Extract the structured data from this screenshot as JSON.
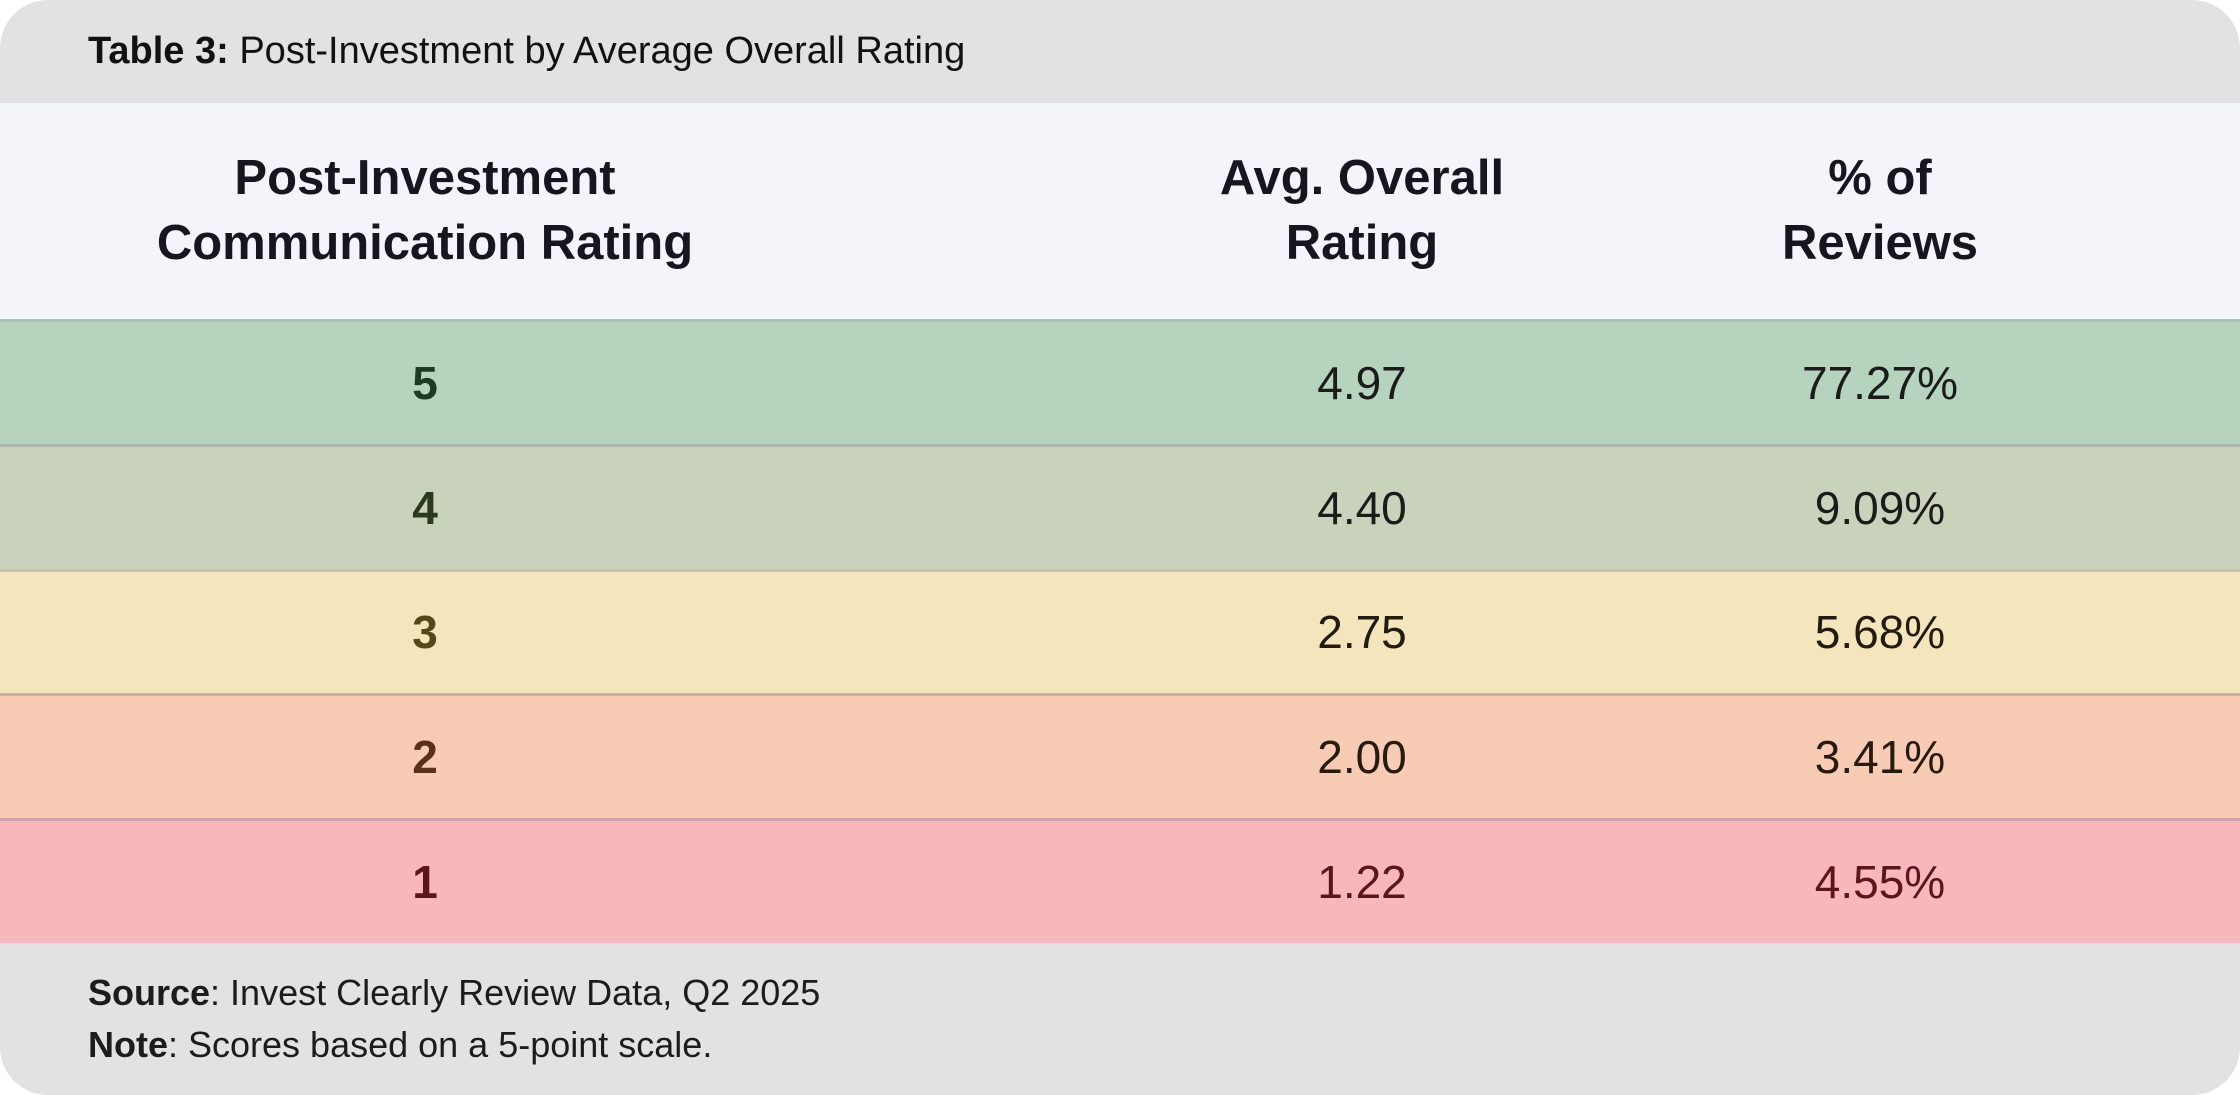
{
  "title": {
    "prefix": "Table 3:",
    "text": " Post-Investment by Average Overall Rating"
  },
  "table": {
    "columns": [
      {
        "label": "Post-Investment\nCommunication Rating"
      },
      {
        "label": "Avg. Overall\nRating"
      },
      {
        "label": "% of\nReviews"
      }
    ],
    "rows": [
      {
        "rating": "5",
        "avg_overall_rating": "4.97",
        "pct_of_reviews": "77.27%",
        "bg_color": "#b5d3bd",
        "rating_color": "#1d3a22",
        "value_color": "#1b1b1b"
      },
      {
        "rating": "4",
        "avg_overall_rating": "4.40",
        "pct_of_reviews": "9.09%",
        "bg_color": "#c9d3bc",
        "rating_color": "#2c3a1c",
        "value_color": "#1b1b1b"
      },
      {
        "rating": "3",
        "avg_overall_rating": "2.75",
        "pct_of_reviews": "5.68%",
        "bg_color": "#f5e5bd",
        "rating_color": "#55471a",
        "value_color": "#221c10"
      },
      {
        "rating": "2",
        "avg_overall_rating": "2.00",
        "pct_of_reviews": "3.41%",
        "bg_color": "#f8ccb4",
        "rating_color": "#5a301a",
        "value_color": "#291a10"
      },
      {
        "rating": "1",
        "avg_overall_rating": "1.22",
        "pct_of_reviews": "4.55%",
        "bg_color": "#f8b7bd",
        "rating_color": "#5b151c",
        "value_color": "#5b151c"
      }
    ]
  },
  "footer": {
    "source_label": "Source",
    "source_text": ": Invest Clearly Review Data, Q2 2025",
    "note_label": "Note",
    "note_text": ": Scores based on a 5-point scale."
  },
  "theme": {
    "title_bar_bg": "#e2e2e2",
    "header_bg": "#f4f5fa",
    "footer_bg": "#e2e2e2",
    "divider_color": "#c7c6ce"
  },
  "chart_data": {
    "type": "table",
    "title": "Table 3: Post-Investment by Average Overall Rating",
    "columns": [
      "Post-Investment Communication Rating",
      "Avg. Overall Rating",
      "% of Reviews"
    ],
    "rows": [
      [
        "5",
        4.97,
        "77.27%"
      ],
      [
        "4",
        4.4,
        "9.09%"
      ],
      [
        "3",
        2.75,
        "5.68%"
      ],
      [
        "2",
        2.0,
        "3.41%"
      ],
      [
        "1",
        1.22,
        "4.55%"
      ]
    ],
    "source": "Invest Clearly Review Data, Q2 2025",
    "note": "Scores based on a 5-point scale."
  }
}
